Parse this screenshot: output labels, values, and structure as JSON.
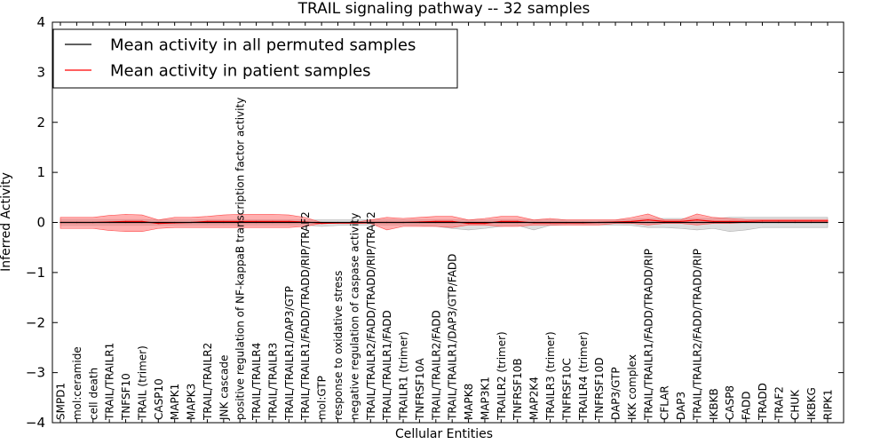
{
  "chart_data": {
    "type": "line",
    "title": "TRAIL signaling pathway -- 32 samples",
    "xlabel": "Cellular Entities",
    "ylabel": "Inferred Activity",
    "ylim": [
      -4,
      4
    ],
    "yticks": [
      -4,
      -3,
      -2,
      -1,
      0,
      1,
      2,
      3,
      4
    ],
    "grid": false,
    "legend_position": "top-left",
    "categories": [
      "SMPD1",
      "mol:ceramide",
      "cell death",
      "TRAIL/TRAILR1",
      "TNFSF10",
      "TRAIL (trimer)",
      "CASP10",
      "MAPK1",
      "MAPK3",
      "TRAIL/TRAILR2",
      "JNK cascade",
      "positive regulation of NF-kappaB transcription factor activity",
      "TRAIL/TRAILR4",
      "TRAIL/TRAILR3",
      "TRAIL/TRAILR1/DAP3/GTP",
      "TRAIL/TRAILR1/FADD/TRADD/RIP/TRAF2",
      "mol:GTP",
      "response to oxidative stress",
      "negative regulation of caspase activity",
      "TRAIL/TRAILR2/FADD/TRADD/RIP/TRAF2",
      "TRAIL/TRAILR1/FADD",
      "TRAILR1 (trimer)",
      "TNFRSF10A",
      "TRAIL/TRAILR2/FADD",
      "TRAIL/TRAILR1/DAP3/GTP/FADD",
      "MAPK8",
      "MAP3K1",
      "TRAILR2 (trimer)",
      "TNFRSF10B",
      "MAP2K4",
      "TRAILR3 (trimer)",
      "TNFRSF10C",
      "TRAILR4 (trimer)",
      "TNFRSF10D",
      "DAP3/GTP",
      "IKK complex",
      "TRAIL/TRAILR1/FADD/TRADD/RIP",
      "CFLAR",
      "DAP3",
      "TRAIL/TRAILR2/FADD/TRADD/RIP",
      "IKBKB",
      "CASP8",
      "FADD",
      "TRADD",
      "TRAF2",
      "CHUK",
      "IKBKG",
      "RIPK1"
    ],
    "series": [
      {
        "name": "Mean activity in all permuted samples",
        "color": "#000000",
        "values": [
          0,
          0,
          0,
          0,
          0,
          0,
          0,
          0,
          0,
          0,
          0,
          0,
          0,
          0,
          0,
          0,
          0,
          0,
          0,
          0,
          0,
          0,
          0,
          0,
          0,
          0,
          0,
          0,
          0,
          0,
          0,
          0,
          0,
          0,
          0,
          0,
          0,
          0,
          0,
          0,
          0,
          0,
          0,
          0,
          0,
          0,
          0,
          0
        ],
        "band_upper": [
          0.06,
          0.06,
          0.06,
          0.06,
          0.06,
          0.06,
          0.05,
          0.05,
          0.05,
          0.05,
          0.05,
          0.05,
          0.05,
          0.05,
          0.05,
          0.05,
          0.05,
          0.05,
          0.05,
          0.05,
          0.05,
          0.05,
          0.05,
          0.05,
          0.05,
          0.05,
          0.05,
          0.05,
          0.05,
          0.05,
          0.05,
          0.05,
          0.05,
          0.05,
          0.05,
          0.06,
          0.08,
          0.08,
          0.08,
          0.08,
          0.08,
          0.1,
          0.1,
          0.1,
          0.1,
          0.1,
          0.1,
          0.1
        ],
        "band_lower": [
          -0.06,
          -0.06,
          -0.06,
          -0.06,
          -0.06,
          -0.06,
          -0.05,
          -0.05,
          -0.05,
          -0.05,
          -0.05,
          -0.05,
          -0.05,
          -0.05,
          -0.05,
          -0.05,
          -0.08,
          -0.06,
          -0.05,
          -0.05,
          -0.05,
          -0.05,
          -0.06,
          -0.08,
          -0.12,
          -0.15,
          -0.12,
          -0.08,
          -0.06,
          -0.15,
          -0.06,
          -0.05,
          -0.05,
          -0.05,
          -0.05,
          -0.06,
          -0.1,
          -0.1,
          -0.12,
          -0.15,
          -0.12,
          -0.18,
          -0.15,
          -0.1,
          -0.1,
          -0.1,
          -0.1,
          -0.1
        ]
      },
      {
        "name": "Mean activity in patient samples",
        "color": "#ff0000",
        "values": [
          0,
          0,
          0,
          0.01,
          0.02,
          0.02,
          -0.02,
          -0.01,
          0,
          0.02,
          0.02,
          0.02,
          0.02,
          0.02,
          0.02,
          0.01,
          -0.02,
          -0.01,
          -0.01,
          0,
          0,
          0,
          0.01,
          0.02,
          0.02,
          -0.02,
          -0.02,
          0.02,
          0.02,
          -0.01,
          -0.01,
          -0.01,
          -0.01,
          0,
          0.01,
          0.02,
          0.05,
          0.02,
          0.02,
          0.05,
          0.02,
          0.02,
          0.02,
          0.03,
          0.03,
          0.03,
          0.03,
          0.03
        ],
        "band_upper": [
          0.1,
          0.1,
          0.1,
          0.14,
          0.16,
          0.15,
          0.05,
          0.1,
          0.1,
          0.12,
          0.15,
          0.16,
          0.16,
          0.16,
          0.15,
          0.1,
          0,
          0,
          0,
          0.05,
          0.1,
          0.08,
          0.1,
          0.12,
          0.12,
          0.05,
          0.08,
          0.12,
          0.12,
          0.05,
          0.08,
          0.05,
          0.05,
          0.05,
          0.05,
          0.1,
          0.17,
          0.05,
          0.05,
          0.17,
          0.1,
          0.08,
          0.06,
          0.06,
          0.06,
          0.06,
          0.06,
          0.06
        ],
        "band_lower": [
          -0.12,
          -0.12,
          -0.12,
          -0.16,
          -0.18,
          -0.18,
          -0.12,
          -0.1,
          -0.1,
          -0.1,
          -0.1,
          -0.1,
          -0.1,
          -0.1,
          -0.1,
          -0.08,
          -0.02,
          -0.02,
          -0.02,
          -0.02,
          -0.15,
          -0.08,
          -0.08,
          -0.08,
          -0.1,
          -0.05,
          -0.05,
          -0.08,
          -0.08,
          -0.05,
          -0.05,
          -0.05,
          -0.05,
          -0.05,
          -0.02,
          -0.02,
          -0.05,
          -0.02,
          -0.02,
          -0.05,
          -0.02,
          -0.02,
          0,
          0,
          0,
          0,
          0,
          0
        ]
      }
    ]
  }
}
